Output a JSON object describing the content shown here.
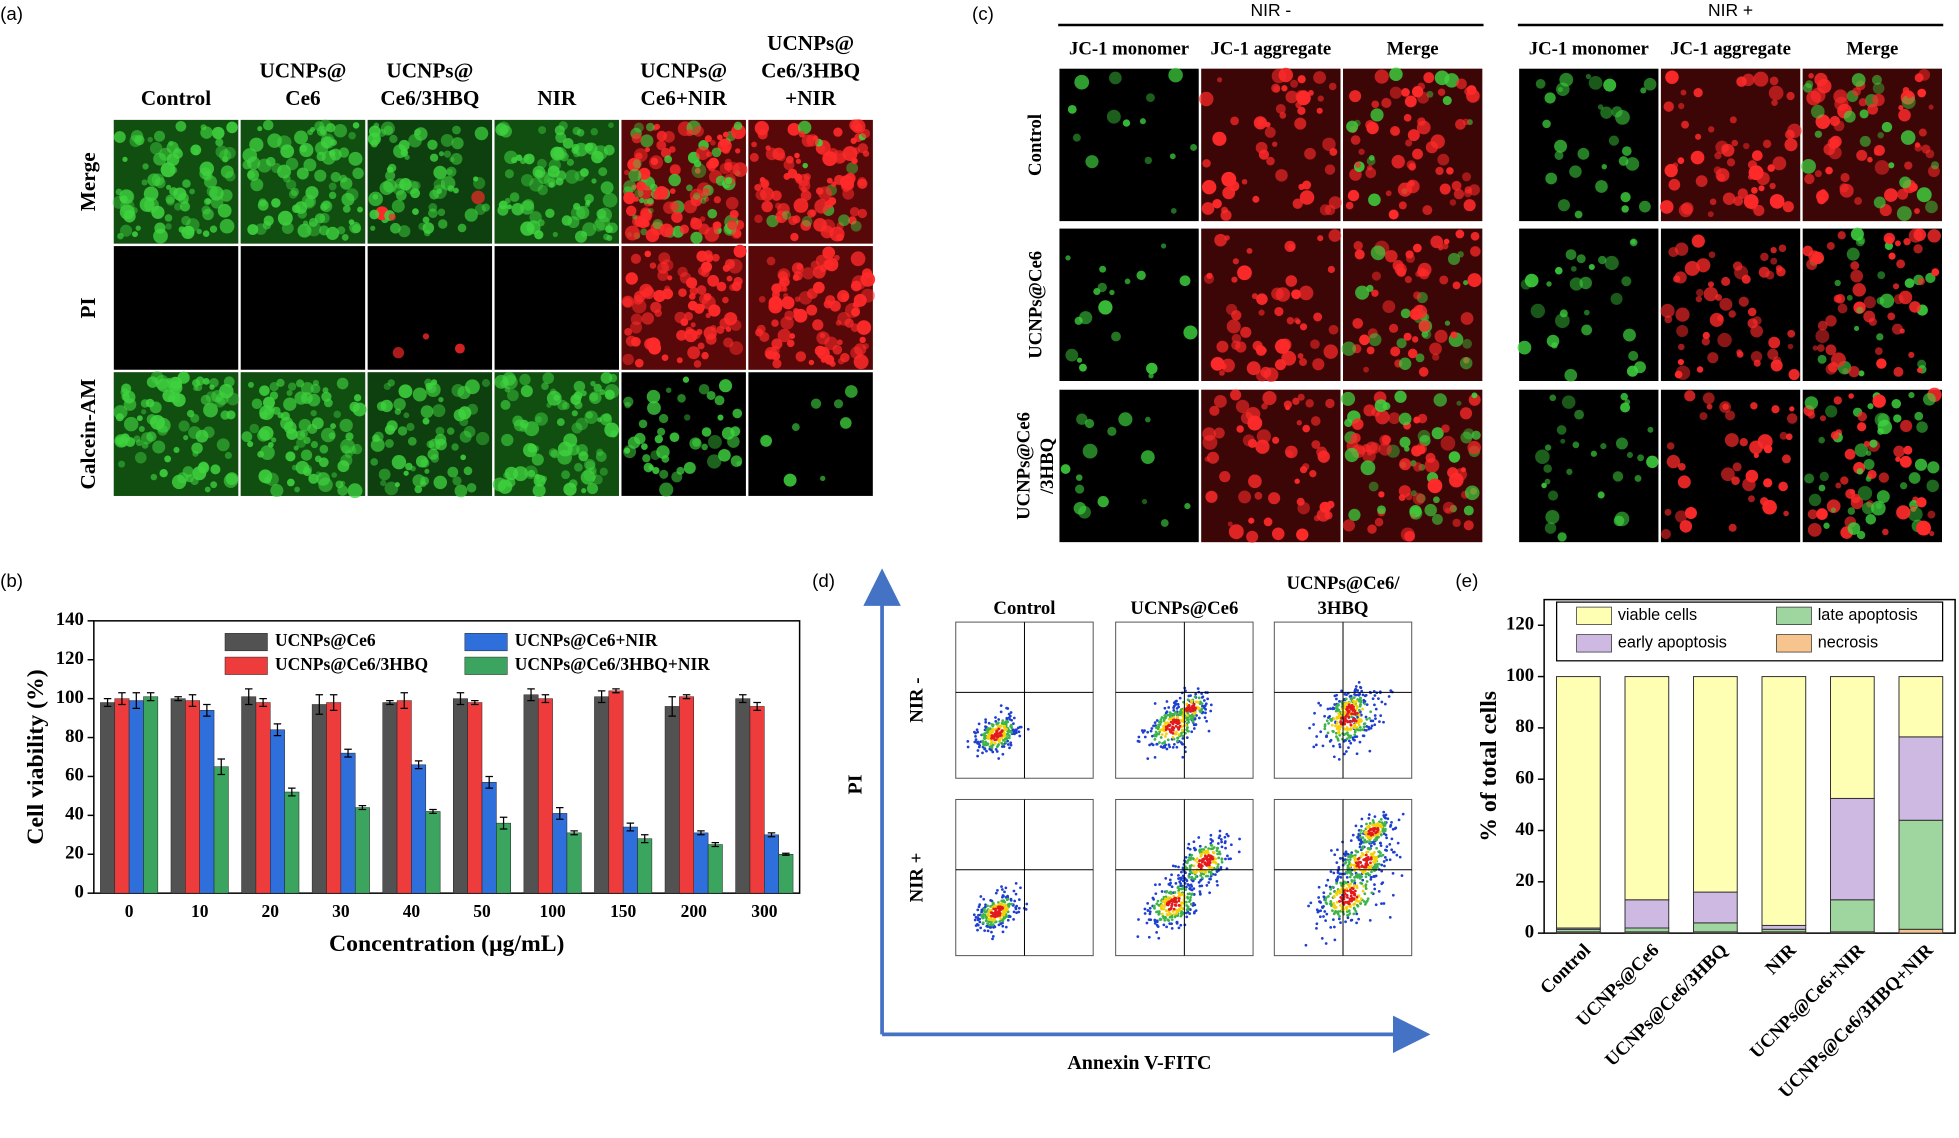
{
  "panel_labels": [
    "(a)",
    "(b)",
    "(c)",
    "(d)",
    "(e)"
  ],
  "panel_a": {
    "columns": [
      [
        "Control"
      ],
      [
        "UCNPs@",
        "Ce6"
      ],
      [
        "UCNPs@",
        "Ce6/3HBQ"
      ],
      [
        "NIR"
      ],
      [
        "UCNPs@",
        "Ce6+NIR"
      ],
      [
        "UCNPs@",
        "Ce6/3HBQ",
        "+NIR"
      ]
    ],
    "rows": [
      "Merge",
      "PI",
      "Calcein-AM"
    ]
  },
  "panel_c": {
    "groups": [
      "NIR -",
      "NIR +"
    ],
    "columns": [
      "JC-1 monomer",
      "JC-1 aggregate",
      "Merge"
    ],
    "rows": [
      [
        "Control"
      ],
      [
        "UCNPs@Ce6"
      ],
      [
        "UCNPs@Ce6",
        "/3HBQ"
      ]
    ]
  },
  "panel_d": {
    "columns": [
      [
        "Control"
      ],
      [
        "UCNPs@Ce6"
      ],
      [
        "UCNPs@Ce6/",
        "3HBQ"
      ]
    ],
    "rows": [
      "NIR -",
      "NIR +"
    ],
    "y_label": "PI",
    "x_label": "Annexin V-FITC"
  },
  "chart_data": [
    {
      "type": "bar",
      "x_label": "Concentration (μg/mL)",
      "y_label": "Cell viability (%)",
      "categories": [
        "0",
        "10",
        "20",
        "30",
        "40",
        "50",
        "100",
        "150",
        "200",
        "300"
      ],
      "series": [
        {
          "name": "UCNPs@Ce6",
          "color": "#525252",
          "values": [
            98,
            100,
            101,
            97,
            98,
            100,
            102,
            101,
            96,
            100
          ],
          "errors": [
            2,
            1,
            4,
            5,
            1,
            3,
            3,
            3,
            5,
            2
          ]
        },
        {
          "name": "UCNPs@Ce6/3HBQ",
          "color": "#ee3b3b",
          "values": [
            100,
            99,
            98,
            98,
            99,
            98,
            100,
            104,
            101,
            96
          ],
          "errors": [
            3,
            3,
            2,
            4,
            4,
            1,
            2,
            1,
            1,
            2
          ]
        },
        {
          "name": "UCNPs@Ce6+NIR",
          "color": "#2f6fdc",
          "values": [
            99,
            94,
            84,
            72,
            66,
            57,
            41,
            34,
            31,
            30
          ],
          "errors": [
            4,
            3,
            3,
            2,
            2,
            3,
            3,
            2,
            1,
            1
          ]
        },
        {
          "name": "UCNPs@Ce6/3HBQ+NIR",
          "color": "#3ba55f",
          "values": [
            101,
            65,
            52,
            44,
            42,
            36,
            31,
            28,
            25,
            20
          ],
          "errors": [
            2,
            4,
            2,
            1,
            1,
            3,
            1,
            2,
            1,
            0.5
          ]
        }
      ],
      "ylim": [
        0,
        140
      ],
      "yticks": [
        0,
        20,
        40,
        60,
        80,
        100,
        120,
        140
      ],
      "legend": "top"
    },
    {
      "type": "stacked_bar",
      "y_label": "% of total cells",
      "categories": [
        "Control",
        "UCNPs@Ce6",
        "UCNPs@Ce6/3HBQ",
        "NIR",
        "UCNPs@Ce6+NIR",
        "UCNPs@Ce6/3HBQ+NIR"
      ],
      "series": [
        {
          "name": "necrosis",
          "color": "#f7c48e",
          "values": [
            0.5,
            0.5,
            0.5,
            0.5,
            0.5,
            1.5
          ]
        },
        {
          "name": "late apoptosis",
          "color": "#9fd69f",
          "values": [
            1,
            1.5,
            3.5,
            1,
            12.5,
            42.5
          ]
        },
        {
          "name": "early apoptosis",
          "color": "#cdb9e2",
          "values": [
            0.5,
            11,
            12,
            1.5,
            39.5,
            32.5
          ]
        },
        {
          "name": "viable cells",
          "color": "#ffffb3",
          "values": [
            98,
            87,
            84,
            97,
            47.5,
            23.5
          ]
        }
      ],
      "ylim": [
        0,
        130
      ],
      "yticks": [
        0,
        20,
        40,
        60,
        80,
        100,
        120
      ],
      "legend": "top"
    }
  ]
}
